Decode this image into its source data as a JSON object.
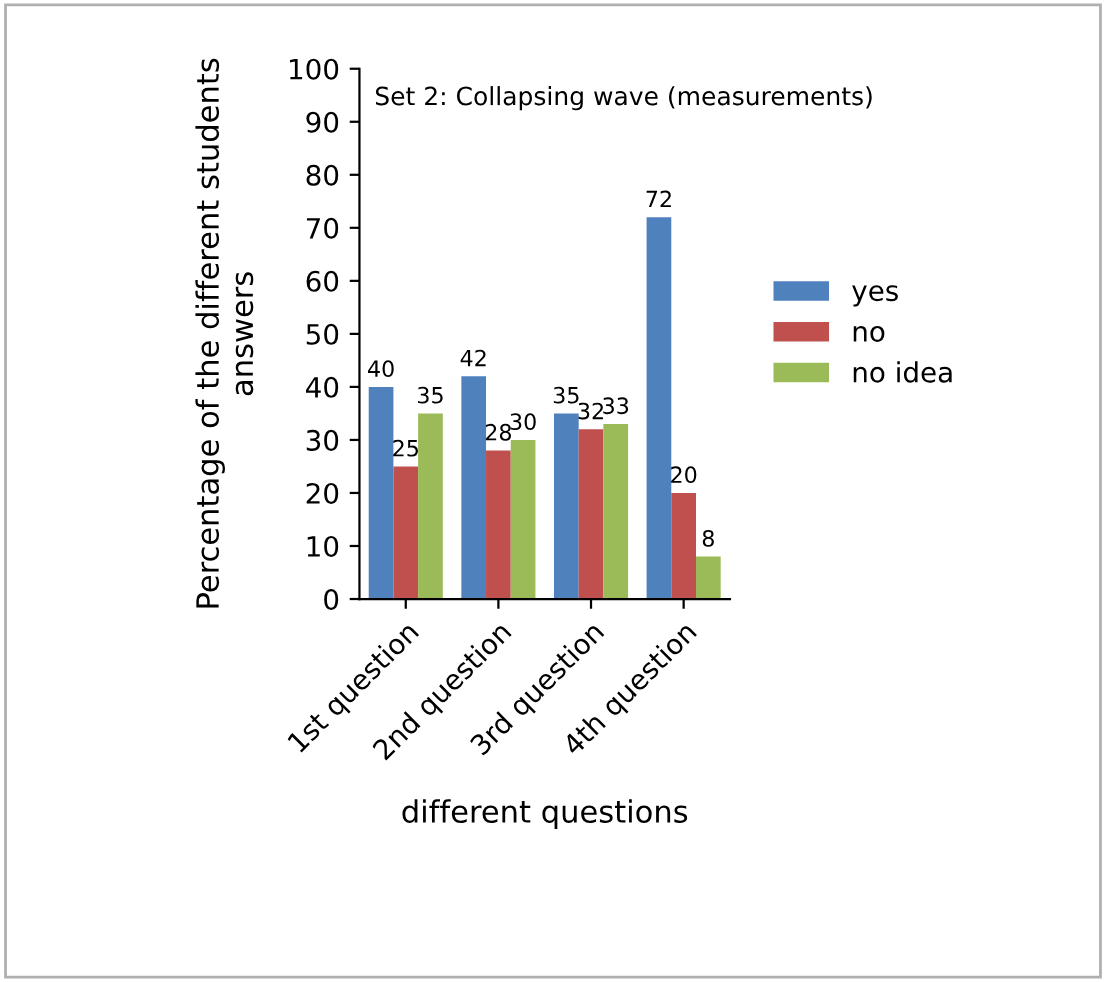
{
  "chart_data": {
    "type": "bar",
    "title": "Set 2: Collapsing wave (measurements)",
    "xlabel": "different questions",
    "ylabel": "Percentage of the different students\nanswers",
    "categories": [
      "1st question",
      "2nd question",
      "3rd question",
      "4th question"
    ],
    "series": [
      {
        "name": "yes",
        "color": "#4f81bd",
        "values": [
          40,
          42,
          35,
          72
        ]
      },
      {
        "name": "no",
        "color": "#c0504d",
        "values": [
          25,
          28,
          32,
          20
        ]
      },
      {
        "name": "no idea",
        "color": "#9bbb59",
        "values": [
          35,
          30,
          33,
          8
        ]
      }
    ],
    "ylim": [
      0,
      100
    ],
    "yticks": [
      0,
      10,
      20,
      30,
      40,
      50,
      60,
      70,
      80,
      90,
      100
    ],
    "data_labels": true,
    "grid": false,
    "legend": "right"
  }
}
